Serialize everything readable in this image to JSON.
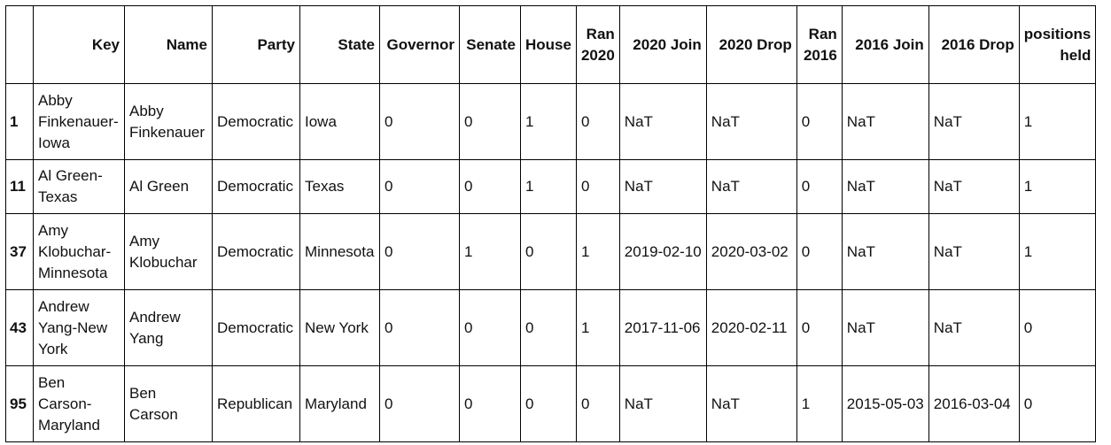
{
  "table": {
    "columns": {
      "key": "Key",
      "name": "Name",
      "party": "Party",
      "state": "State",
      "governor": "Governor",
      "senate": "Senate",
      "house": "House",
      "ran2020": "Ran 2020",
      "join2020": "2020 Join",
      "drop2020": "2020 Drop",
      "ran2016": "Ran 2016",
      "join2016": "2016 Join",
      "drop2016": "2016 Drop",
      "positions": "positions held"
    },
    "rows": [
      {
        "index": "1",
        "key": "Abby Finkenauer-Iowa",
        "name": "Abby Finkenauer",
        "party": "Democratic",
        "state": "Iowa",
        "governor": "0",
        "senate": "0",
        "house": "1",
        "ran2020": "0",
        "join2020": "NaT",
        "drop2020": "NaT",
        "ran2016": "0",
        "join2016": "NaT",
        "drop2016": "NaT",
        "positions": "1"
      },
      {
        "index": "11",
        "key": "Al Green-Texas",
        "name": "Al Green",
        "party": "Democratic",
        "state": "Texas",
        "governor": "0",
        "senate": "0",
        "house": "1",
        "ran2020": "0",
        "join2020": "NaT",
        "drop2020": "NaT",
        "ran2016": "0",
        "join2016": "NaT",
        "drop2016": "NaT",
        "positions": "1"
      },
      {
        "index": "37",
        "key": "Amy Klobuchar-Minnesota",
        "name": "Amy Klobuchar",
        "party": "Democratic",
        "state": "Minnesota",
        "governor": "0",
        "senate": "1",
        "house": "0",
        "ran2020": "1",
        "join2020": "2019-02-10",
        "drop2020": "2020-03-02",
        "ran2016": "0",
        "join2016": "NaT",
        "drop2016": "NaT",
        "positions": "1"
      },
      {
        "index": "43",
        "key": "Andrew Yang-New York",
        "name": "Andrew Yang",
        "party": "Democratic",
        "state": "New York",
        "governor": "0",
        "senate": "0",
        "house": "0",
        "ran2020": "1",
        "join2020": "2017-11-06",
        "drop2020": "2020-02-11",
        "ran2016": "0",
        "join2016": "NaT",
        "drop2016": "NaT",
        "positions": "0"
      },
      {
        "index": "95",
        "key": "Ben Carson-Maryland",
        "name": "Ben Carson",
        "party": "Republican",
        "state": "Maryland",
        "governor": "0",
        "senate": "0",
        "house": "0",
        "ran2020": "0",
        "join2020": "NaT",
        "drop2020": "NaT",
        "ran2016": "1",
        "join2016": "2015-05-03",
        "drop2016": "2016-03-04",
        "positions": "0"
      }
    ]
  }
}
